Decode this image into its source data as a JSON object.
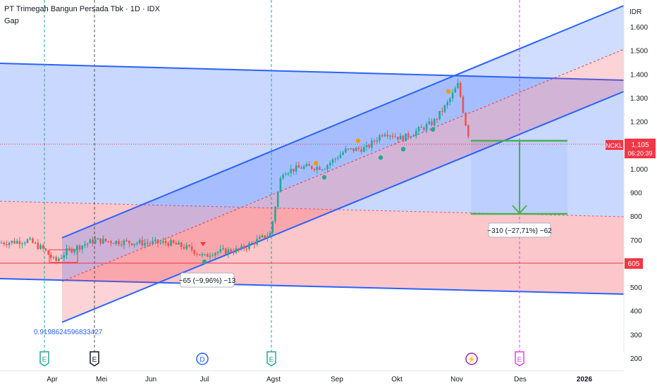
{
  "header": {
    "title": "PT Trimegah Bangun Persada Tbk · 1D · IDX",
    "indicator": "Gap"
  },
  "chart_data": {
    "type": "candlestick",
    "currency": "IDR",
    "ylim": [
      200,
      1700
    ],
    "y_ticks": [
      "200",
      "300",
      "400",
      "500",
      "600",
      "700",
      "800",
      "900",
      "1.000",
      "1.100",
      "1.200",
      "1.300",
      "1.400",
      "1.500",
      "1.600"
    ],
    "x_ticks": [
      "Apr",
      "Mei",
      "Jun",
      "Jul",
      "Agst",
      "Sep",
      "Okt",
      "Nov",
      "Des",
      "2026"
    ],
    "last_price_label": "1.105",
    "countdown": "06:20:39",
    "ticker": "NCKL",
    "level_label": "605",
    "level_value": 605,
    "fib_label": "0.9198624596833427",
    "measure_1": {
      "text": "−65 (−9,96%) −13"
    },
    "measure_2": {
      "text": "−310 (−27,71%) −62"
    },
    "event_markers": [
      {
        "letter": "E",
        "x_date": "2025-03-27",
        "kind": "earnings-past"
      },
      {
        "letter": "E",
        "x_date": "2025-04-30",
        "kind": "earnings-past-dark"
      },
      {
        "letter": "D",
        "x_date": "2025-06-30",
        "kind": "dividend"
      },
      {
        "letter": "E",
        "x_date": "2025-07-31",
        "kind": "earnings-past"
      },
      {
        "letter": "⚡",
        "x_date": "2025-10-30",
        "kind": "split"
      },
      {
        "letter": "E",
        "x_date": "2025-11-28",
        "kind": "earnings-future"
      }
    ]
  },
  "colors": {
    "up": "#26a69a",
    "down": "#ef5350",
    "channel_blue": "#2962ff",
    "channel_red": "#f23645",
    "measure_green": "#4caf50"
  }
}
